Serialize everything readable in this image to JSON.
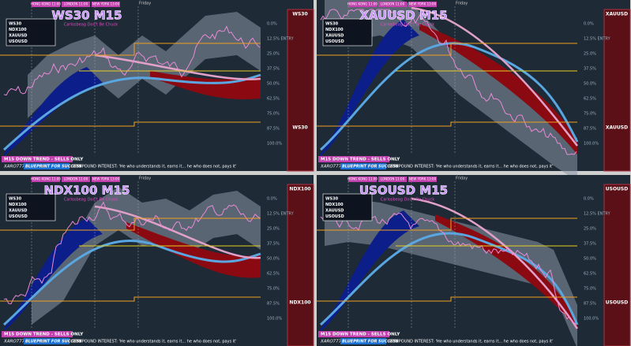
{
  "day_label": "Friday",
  "panels": [
    {
      "title": "WS30 M15",
      "subtitle": "Carlosbeag Don't Be Chuck",
      "symbol": "WS30",
      "sessions": [
        "HONG KONG 11:00",
        "LONDON 11:00",
        "NEW YORK 13:00"
      ],
      "levels": [
        "0.0%",
        "12.5% ENTRY",
        "25.0%",
        "37.5%",
        "50.0%",
        "62.5%",
        "75.0%",
        "87.5%",
        "100.0%"
      ],
      "watch": [
        "WS30",
        "NDX100",
        "XAUUSD",
        "USOUSD"
      ],
      "trend": "M15  DOWN TREND - SELLS ONLY",
      "watermark": "XARO777",
      "blueprint": "BLUEPRINT FOR SUCCESS",
      "quote": "COMPOUND INTEREST: 'He who understands it, earns it... he who does not, pays it'"
    },
    {
      "title": "XAUUSD M15",
      "subtitle": "Carlosbeag Don't Be Chuck",
      "symbol": "XAUUSD",
      "sessions": [
        "HONG KONG 11:00",
        "LONDON 11:00",
        "NEW YORK 13:00"
      ],
      "levels": [
        "0.0%",
        "12.5% ENTRY",
        "25.0%",
        "37.5%",
        "50.0%",
        "62.5%",
        "75.0%",
        "87.5%",
        "100.0%"
      ],
      "watch": [
        "WS30",
        "NDX100",
        "XAUUSD",
        "USOUSD"
      ],
      "trend": "M15  DOWN TREND - SELLS ONLY",
      "watermark": "XARO777",
      "blueprint": "BLUEPRINT FOR SUCCESS",
      "quote": "COMPOUND INTEREST: 'He who understands it, earns it... he who does not, pays it'"
    },
    {
      "title": "NDX100 M15",
      "subtitle": "Carlosbeag Don't Be Chuck",
      "symbol": "NDX100",
      "sessions": [
        "HONG KONG 11:00",
        "LONDON 11:00",
        "NEW YORK 13:00"
      ],
      "levels": [
        "0.0%",
        "12.5% ENTRY",
        "25.0%",
        "37.5%",
        "50.0%",
        "62.5%",
        "75.0%",
        "87.5%",
        "100.0%"
      ],
      "watch": [
        "WS30",
        "NDX100",
        "XAUUSD",
        "USOUSD"
      ],
      "trend": "M15  DOWN TREND - SELLS ONLY",
      "watermark": "XARO777",
      "blueprint": "BLUEPRINT FOR SUCCESS",
      "quote": "COMPOUND INTEREST: 'He who understands it, earns it... he who does not, pays it'"
    },
    {
      "title": "USOUSD M15",
      "subtitle": "Carlosbeag Don't Be Chuck",
      "symbol": "USOUSD",
      "sessions": [
        "HONG KONG 11:00",
        "LONDON 11:00",
        "NEW YORK 13:00"
      ],
      "levels": [
        "0.0%",
        "12.5% ENTRY",
        "25.0%",
        "37.5%",
        "50.0%",
        "62.5%",
        "75.0%",
        "87.5%",
        "100.0%"
      ],
      "watch": [
        "WS30",
        "NDX100",
        "XAUUSD",
        "USOUSD"
      ],
      "trend": "M15  DOWN TREND - SELLS ONLY",
      "watermark": "XARO777",
      "blueprint": "BLUEPRINT FOR SUCCESS",
      "quote": "COMPOUND INTEREST: 'He who understands it, earns it... he who does not, pays it'"
    }
  ]
}
